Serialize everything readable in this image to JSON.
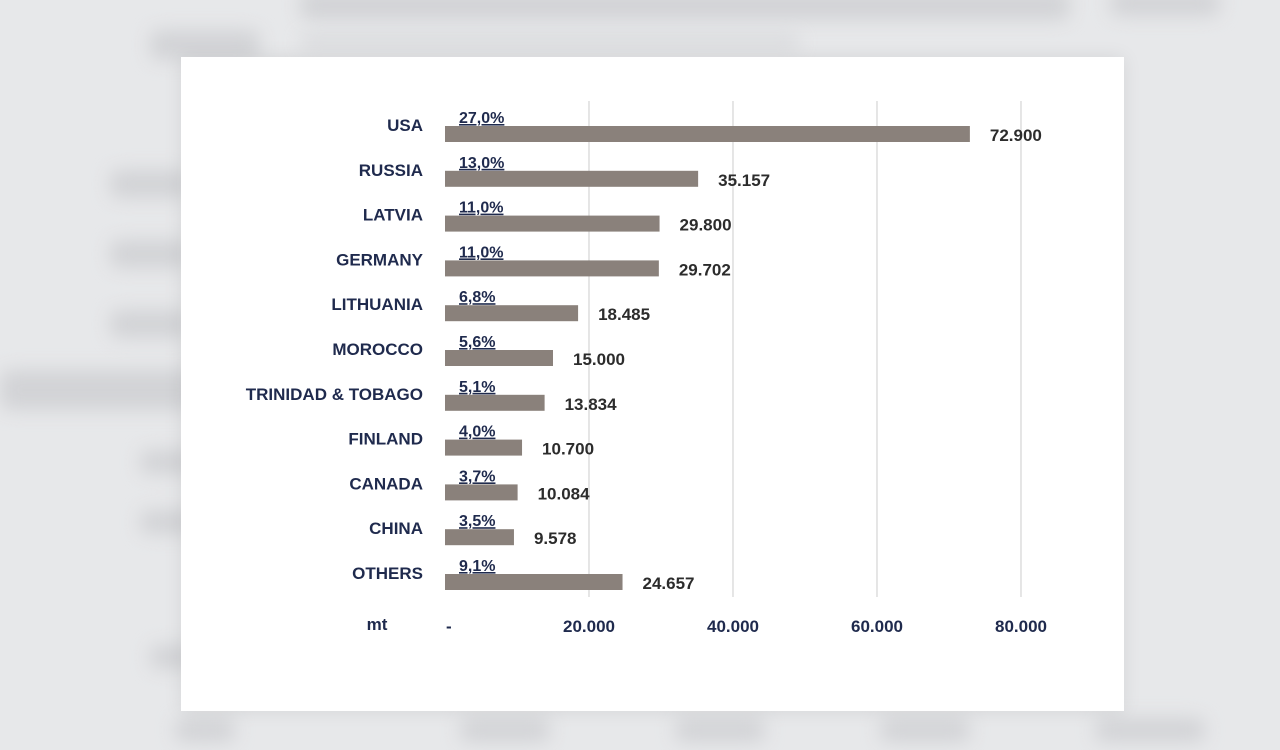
{
  "chart_data": {
    "type": "bar",
    "orientation": "horizontal",
    "categories": [
      "USA",
      "RUSSIA",
      "LATVIA",
      "GERMANY",
      "LITHUANIA",
      "MOROCCO",
      "TRINIDAD & TOBAGO",
      "FINLAND",
      "CANADA",
      "CHINA",
      "OTHERS"
    ],
    "values": [
      72900,
      35157,
      29800,
      29702,
      18485,
      15000,
      13834,
      10700,
      10084,
      9578,
      24657
    ],
    "value_labels": [
      "72.900",
      "35.157",
      "29.800",
      "29.702",
      "18.485",
      "15.000",
      "13.834",
      "10.700",
      "10.084",
      "9.578",
      "24.657"
    ],
    "percent_labels": [
      "27,0%",
      "13,0%",
      "11,0%",
      "11,0%",
      "6,8%",
      "5,6%",
      "5,1%",
      "4,0%",
      "3,7%",
      "3,5%",
      "9,1%"
    ],
    "xlabel": "mt",
    "xlim": [
      0,
      80000
    ],
    "x_ticks": [
      0,
      20000,
      40000,
      60000,
      80000
    ],
    "x_tick_labels": [
      "-",
      "20.000",
      "40.000",
      "60.000",
      "80.000"
    ],
    "grid": "vertical",
    "bar_color": "#8a817b",
    "label_color": "#1f2a4d"
  }
}
